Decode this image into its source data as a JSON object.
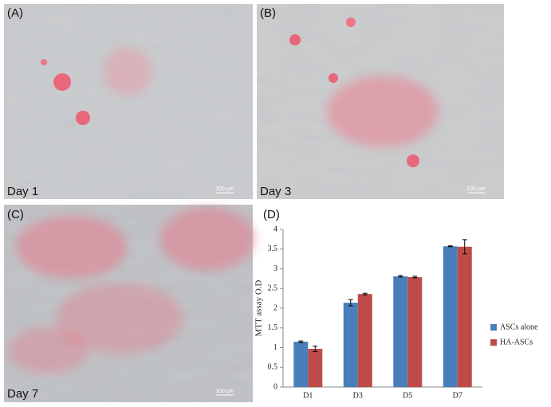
{
  "panels": [
    {
      "label": "(A)",
      "caption": "Day 1",
      "scale": "100 µm"
    },
    {
      "label": "(B)",
      "caption": "Day 3",
      "scale": "100 µm"
    },
    {
      "label": "(C)",
      "caption": "Day 7",
      "scale": "100 µm"
    },
    {
      "label": "(D)"
    }
  ],
  "chart_data": {
    "type": "bar",
    "ylabel": "MTT assay O.D",
    "categories": [
      "D1",
      "D3",
      "D5",
      "D7"
    ],
    "series": [
      {
        "name": "ASCs alone",
        "color": "#4a7ebb",
        "values": [
          1.15,
          2.14,
          2.81,
          3.57
        ],
        "errors": [
          0.02,
          0.08,
          0.02,
          0.01
        ]
      },
      {
        "name": "HA-ASCs",
        "color": "#be4b48",
        "values": [
          0.97,
          2.36,
          2.79,
          3.56
        ],
        "errors": [
          0.07,
          0.02,
          0.02,
          0.18
        ]
      }
    ],
    "ylim": [
      0,
      4
    ],
    "yticks": [
      0,
      0.5,
      1,
      1.5,
      2,
      2.5,
      3,
      3.5,
      4
    ],
    "legend": "right"
  }
}
